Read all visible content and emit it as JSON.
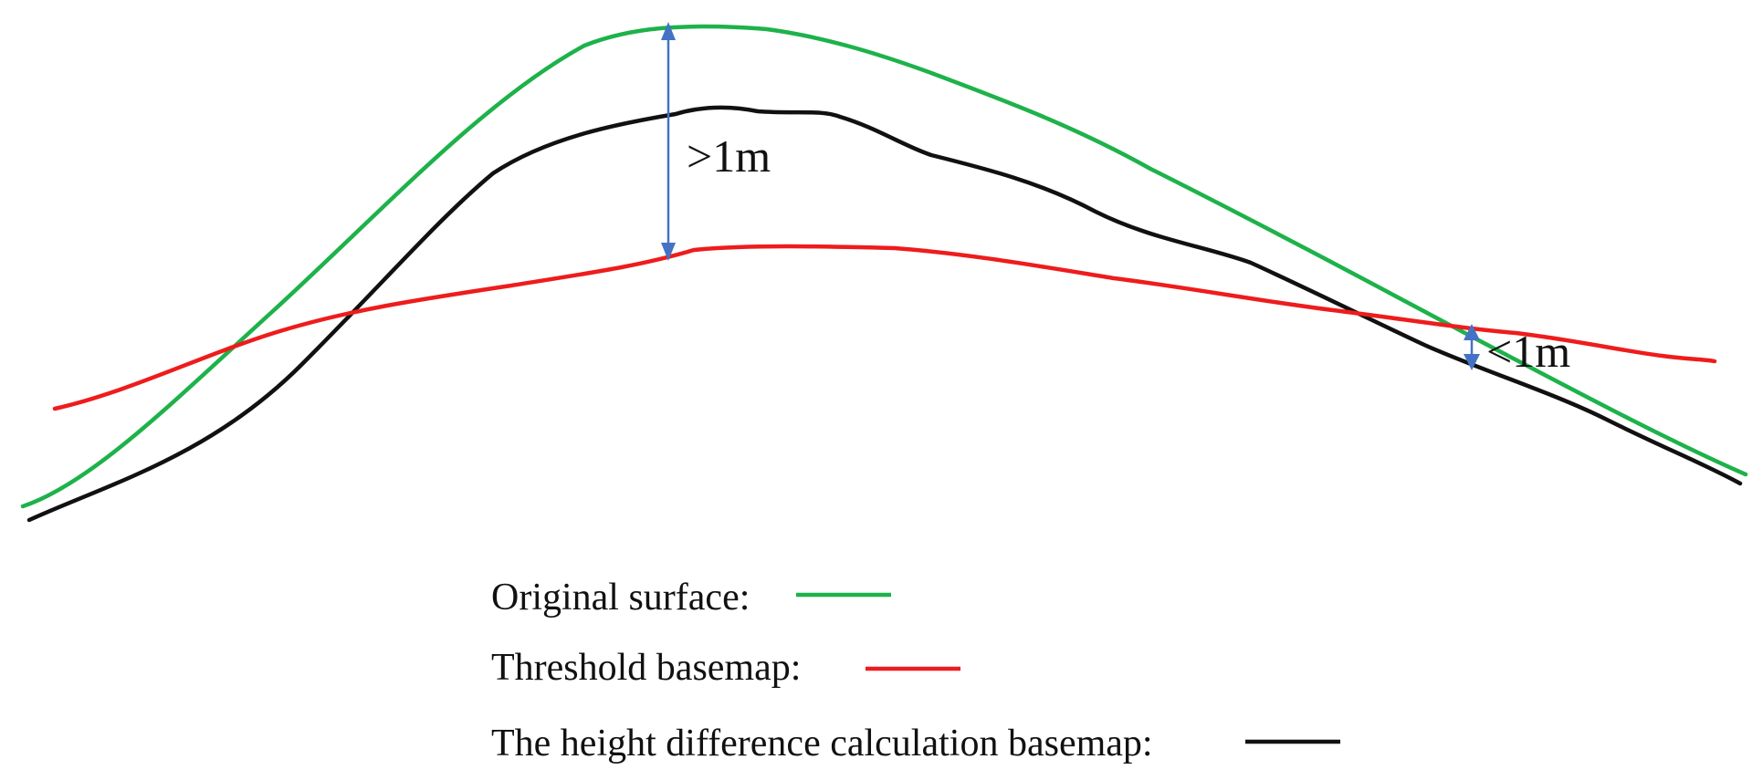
{
  "annotations": {
    "large_diff": ">1m",
    "small_diff": "<1m"
  },
  "legend": {
    "items": [
      {
        "label": "Original surface:",
        "color": "#1db24a"
      },
      {
        "label": "Threshold basemap:",
        "color": "#ee1c1c"
      },
      {
        "label": "The height difference calculation basemap:",
        "color": "#111111"
      }
    ]
  },
  "colors": {
    "arrow": "#4472c4"
  },
  "icons": {
    "arrow_head": "triangle-arrowhead"
  }
}
